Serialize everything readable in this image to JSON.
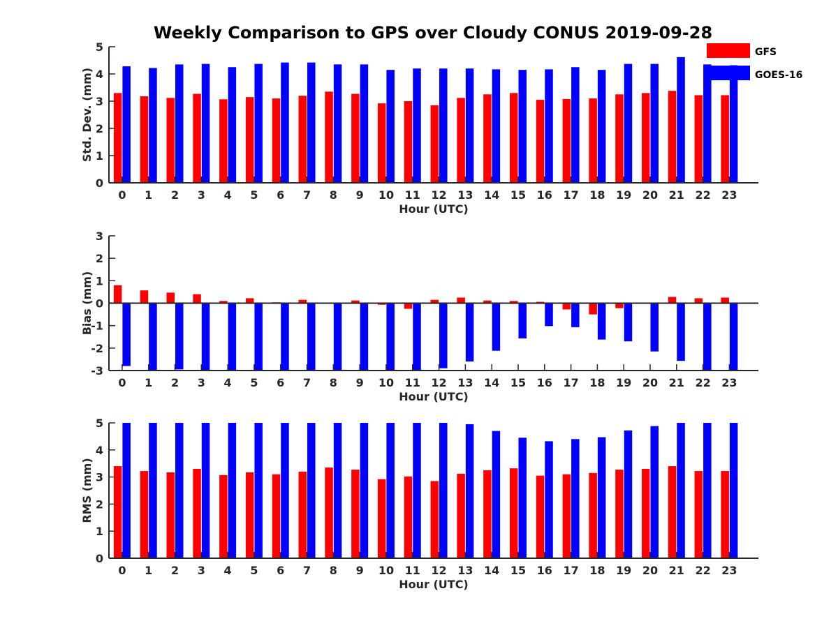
{
  "title": "Weekly Comparison to GPS over Cloudy CONUS 2019-09-28",
  "legend": {
    "placement": "top-right",
    "entries": [
      {
        "name": "GFS",
        "color": "#ff0000"
      },
      {
        "name": "GOES-16",
        "color": "#0000ff"
      }
    ]
  },
  "chart_data": [
    {
      "type": "bar",
      "xlabel": "Hour (UTC)",
      "ylabel": "Std. Dev. (mm)",
      "ylim": [
        0,
        5
      ],
      "yticks": [
        "0",
        "1",
        "2",
        "3",
        "4",
        "5"
      ],
      "grid": false,
      "categories": [
        "0",
        "1",
        "2",
        "3",
        "4",
        "5",
        "6",
        "7",
        "8",
        "9",
        "10",
        "11",
        "12",
        "13",
        "14",
        "15",
        "16",
        "17",
        "18",
        "19",
        "20",
        "21",
        "22",
        "23"
      ],
      "series": [
        {
          "name": "GFS",
          "color": "#ff0000",
          "values": [
            3.3,
            3.18,
            3.12,
            3.27,
            3.07,
            3.15,
            3.1,
            3.2,
            3.35,
            3.27,
            2.92,
            3.0,
            2.85,
            3.12,
            3.25,
            3.3,
            3.05,
            3.08,
            3.1,
            3.25,
            3.3,
            3.38,
            3.22,
            3.22
          ]
        },
        {
          "name": "GOES-16",
          "color": "#0000ff",
          "values": [
            4.28,
            4.22,
            4.35,
            4.37,
            4.25,
            4.37,
            4.42,
            4.42,
            4.35,
            4.35,
            4.15,
            4.2,
            4.2,
            4.2,
            4.17,
            4.15,
            4.17,
            4.25,
            4.15,
            4.37,
            4.37,
            4.62,
            4.35,
            4.32
          ]
        }
      ]
    },
    {
      "type": "bar",
      "xlabel": "Hour (UTC)",
      "ylabel": "Bias (mm)",
      "ylim": [
        -3,
        3
      ],
      "yticks": [
        "-3",
        "-2",
        "-1",
        "0",
        "1",
        "2",
        "3"
      ],
      "grid": false,
      "categories": [
        "0",
        "1",
        "2",
        "3",
        "4",
        "5",
        "6",
        "7",
        "8",
        "9",
        "10",
        "11",
        "12",
        "13",
        "14",
        "15",
        "16",
        "17",
        "18",
        "19",
        "20",
        "21",
        "22",
        "23"
      ],
      "series": [
        {
          "name": "GFS",
          "color": "#ff0000",
          "values": [
            0.8,
            0.57,
            0.47,
            0.4,
            0.1,
            0.22,
            0.04,
            0.15,
            -0.02,
            0.12,
            -0.07,
            -0.25,
            0.15,
            0.25,
            0.12,
            0.1,
            0.06,
            -0.28,
            -0.5,
            -0.22,
            0.0,
            0.28,
            0.22,
            0.25
          ]
        },
        {
          "name": "GOES-16",
          "color": "#0000ff",
          "values": [
            -2.8,
            -3.0,
            -2.95,
            -3.0,
            -3.0,
            -3.0,
            -3.0,
            -3.0,
            -3.0,
            -3.0,
            -3.0,
            -3.0,
            -2.9,
            -2.6,
            -2.12,
            -1.57,
            -1.02,
            -1.07,
            -1.62,
            -1.7,
            -2.15,
            -2.57,
            -3.0,
            -3.0
          ]
        }
      ]
    },
    {
      "type": "bar",
      "xlabel": "Hour (UTC)",
      "ylabel": "RMS (mm)",
      "ylim": [
        0,
        5
      ],
      "yticks": [
        "0",
        "1",
        "2",
        "3",
        "4",
        "5"
      ],
      "grid": false,
      "categories": [
        "0",
        "1",
        "2",
        "3",
        "4",
        "5",
        "6",
        "7",
        "8",
        "9",
        "10",
        "11",
        "12",
        "13",
        "14",
        "15",
        "16",
        "17",
        "18",
        "19",
        "20",
        "21",
        "22",
        "23"
      ],
      "series": [
        {
          "name": "GFS",
          "color": "#ff0000",
          "values": [
            3.4,
            3.22,
            3.17,
            3.3,
            3.07,
            3.17,
            3.1,
            3.2,
            3.35,
            3.27,
            2.92,
            3.02,
            2.85,
            3.12,
            3.25,
            3.32,
            3.05,
            3.1,
            3.15,
            3.27,
            3.3,
            3.4,
            3.22,
            3.22
          ]
        },
        {
          "name": "GOES-16",
          "color": "#0000ff",
          "values": [
            5.0,
            5.0,
            5.0,
            5.0,
            5.0,
            5.0,
            5.0,
            5.0,
            5.0,
            5.0,
            5.0,
            5.0,
            5.0,
            4.95,
            4.7,
            4.45,
            4.32,
            4.4,
            4.47,
            4.72,
            4.88,
            5.0,
            5.0,
            5.0
          ]
        }
      ]
    }
  ]
}
